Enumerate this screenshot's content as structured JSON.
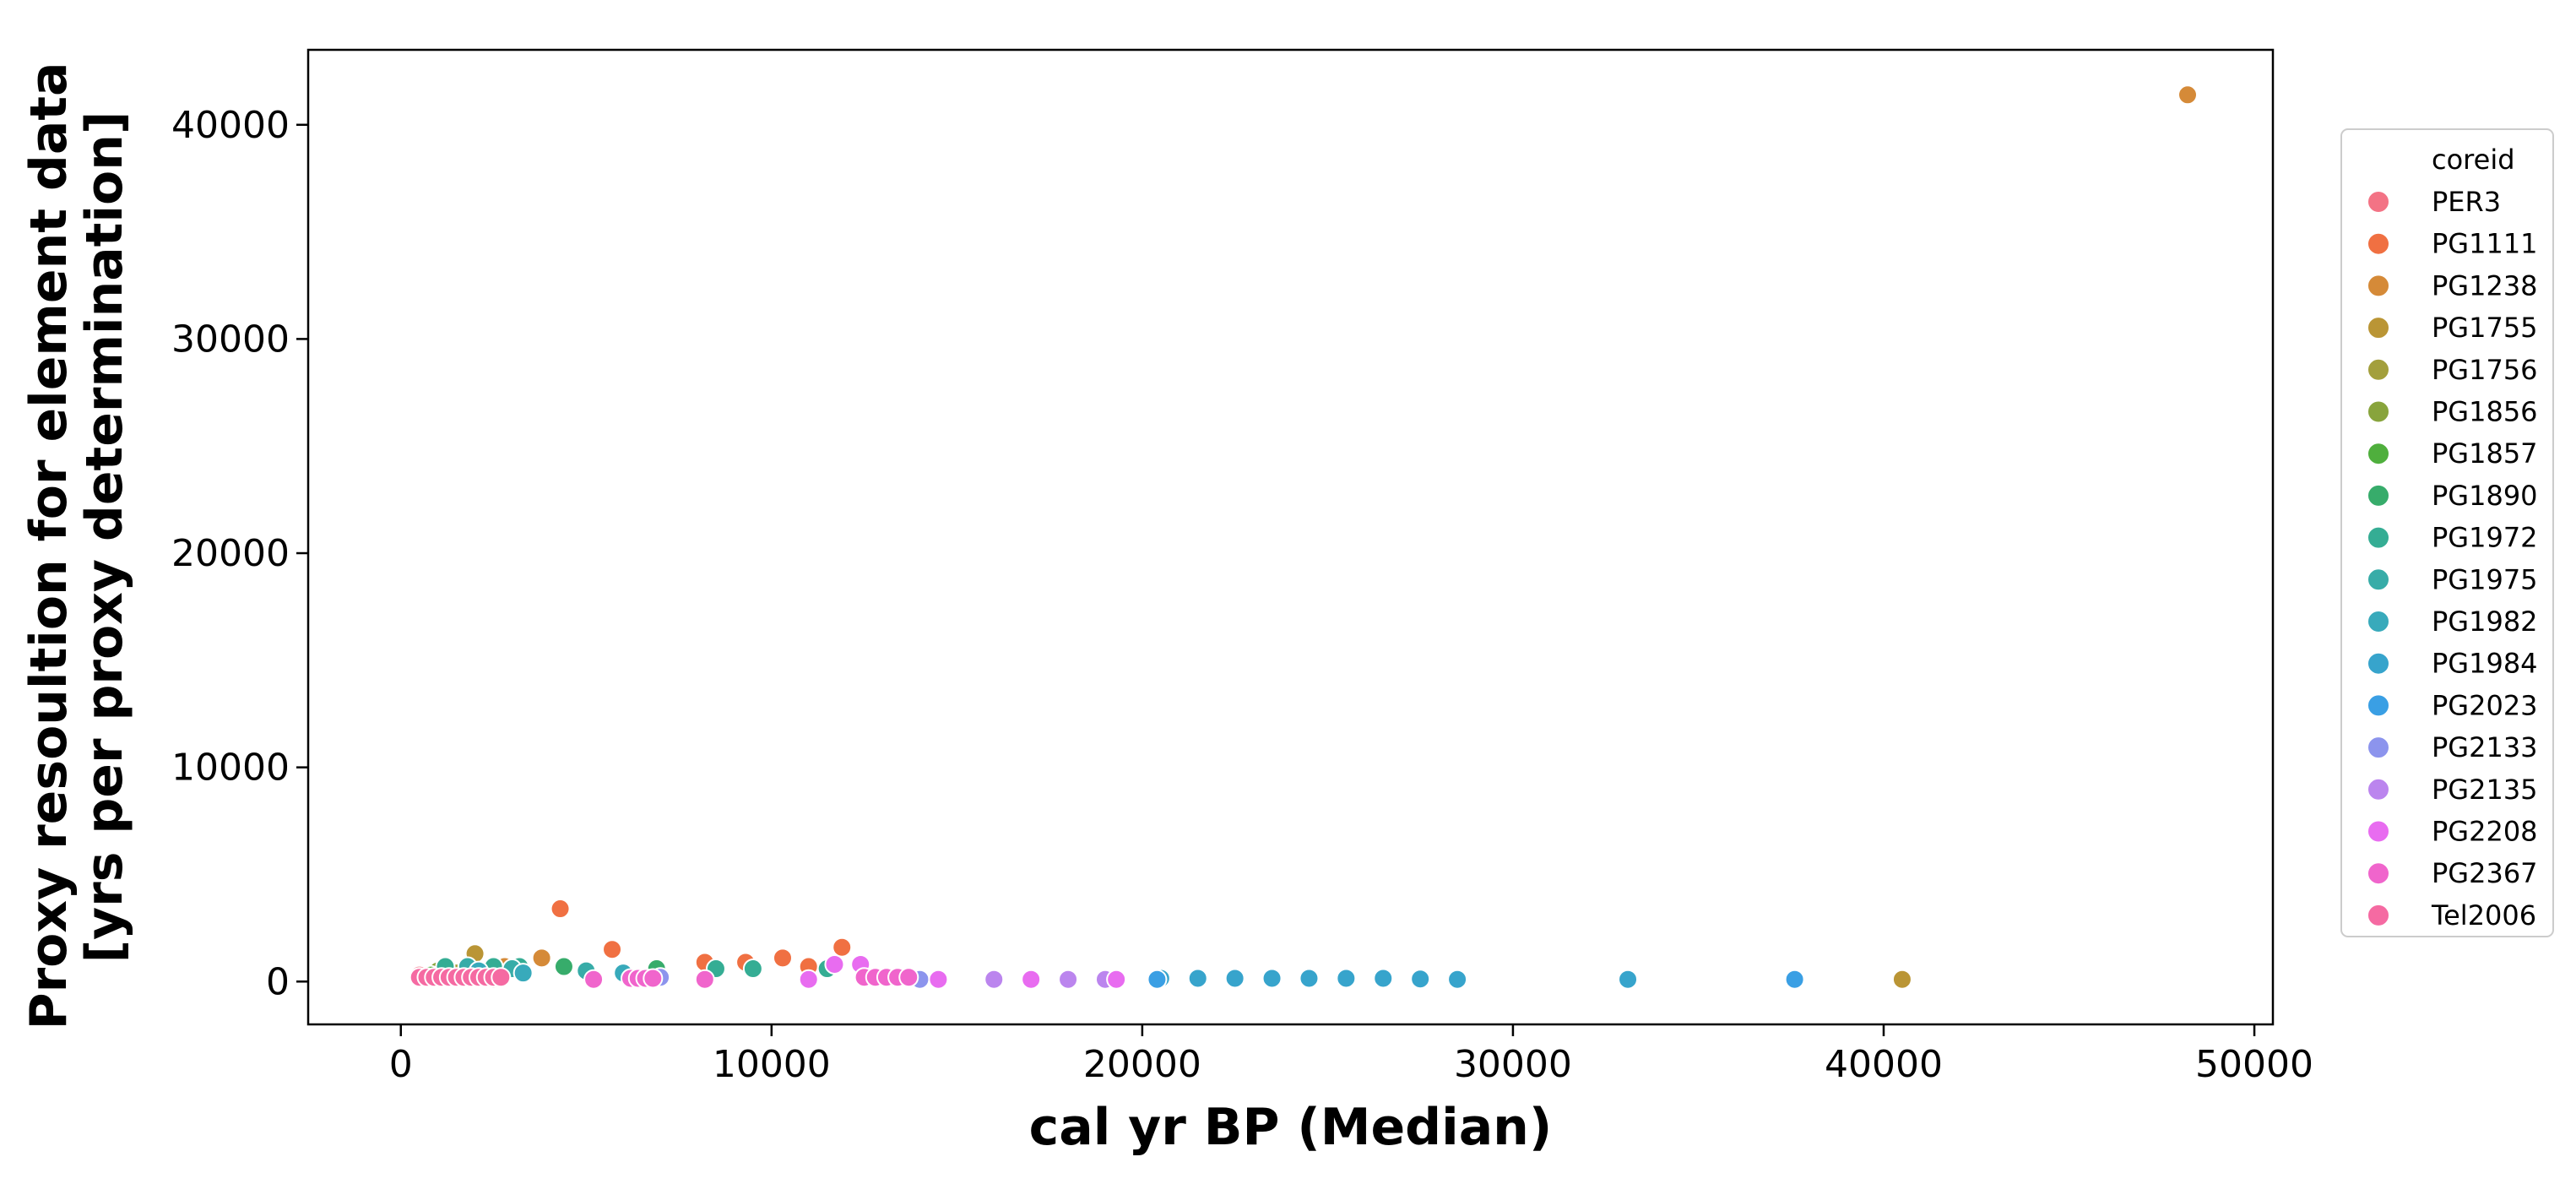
{
  "chart_data": {
    "type": "scatter",
    "xlabel": "cal yr BP (Median)",
    "ylabel_lines": [
      "Proxy resoultion for element data",
      "[yrs per proxy determination]"
    ],
    "xlim": [
      -2500,
      50500
    ],
    "ylim": [
      -2000,
      43500
    ],
    "x_ticks": [
      0,
      10000,
      20000,
      30000,
      40000,
      50000
    ],
    "y_ticks": [
      0,
      10000,
      20000,
      30000,
      40000
    ],
    "grid": false,
    "legend": {
      "title": "coreid",
      "placement": "right-outside"
    },
    "series": [
      {
        "name": "PER3",
        "color": "#f37385",
        "points": [
          [
            500,
            300
          ],
          [
            800,
            180
          ],
          [
            1100,
            250
          ],
          [
            1500,
            200
          ],
          [
            2000,
            150
          ],
          [
            2500,
            120
          ]
        ]
      },
      {
        "name": "PG1111",
        "color": "#f07042",
        "points": [
          [
            4300,
            3400
          ],
          [
            5700,
            1500
          ],
          [
            8200,
            900
          ],
          [
            9300,
            900
          ],
          [
            10300,
            1100
          ],
          [
            11000,
            700
          ],
          [
            11900,
            1600
          ]
        ]
      },
      {
        "name": "PG1238",
        "color": "#d58a38",
        "points": [
          [
            48200,
            41400
          ],
          [
            3800,
            1100
          ],
          [
            2800,
            700
          ]
        ]
      },
      {
        "name": "PG1755",
        "color": "#ba9535",
        "points": [
          [
            40500,
            100
          ],
          [
            2000,
            1300
          ]
        ]
      },
      {
        "name": "PG1756",
        "color": "#a39f3c",
        "points": [
          [
            1500,
            400
          ],
          [
            2500,
            300
          ]
        ]
      },
      {
        "name": "PG1856",
        "color": "#88a43c",
        "points": [
          [
            1000,
            500
          ],
          [
            2000,
            400
          ]
        ]
      },
      {
        "name": "PG1857",
        "color": "#4faf3d",
        "points": [
          [
            800,
            300
          ],
          [
            1800,
            200
          ]
        ]
      },
      {
        "name": "PG1890",
        "color": "#37ac6b",
        "points": [
          [
            4400,
            700
          ],
          [
            6900,
            600
          ],
          [
            2600,
            300
          ]
        ]
      },
      {
        "name": "PG1972",
        "color": "#35ad94",
        "points": [
          [
            1200,
            700
          ],
          [
            2500,
            700
          ],
          [
            3200,
            700
          ],
          [
            8500,
            600
          ],
          [
            9500,
            600
          ],
          [
            11500,
            600
          ]
        ]
      },
      {
        "name": "PG1975",
        "color": "#37aca8",
        "points": [
          [
            1800,
            700
          ],
          [
            3000,
            600
          ],
          [
            5000,
            500
          ]
        ]
      },
      {
        "name": "PG1982",
        "color": "#38aabb",
        "points": [
          [
            2100,
            500
          ],
          [
            3300,
            400
          ],
          [
            6000,
            400
          ]
        ]
      },
      {
        "name": "PG1984",
        "color": "#37a4cc",
        "points": [
          [
            20500,
            150
          ],
          [
            21500,
            150
          ],
          [
            22500,
            150
          ],
          [
            23500,
            150
          ],
          [
            24500,
            150
          ],
          [
            25500,
            150
          ],
          [
            26500,
            150
          ],
          [
            27500,
            120
          ],
          [
            28500,
            100
          ],
          [
            33100,
            100
          ]
        ]
      },
      {
        "name": "PG2023",
        "color": "#3a9fe4",
        "points": [
          [
            37600,
            100
          ],
          [
            20400,
            100
          ]
        ]
      },
      {
        "name": "PG2133",
        "color": "#8c94ed",
        "points": [
          [
            7000,
            200
          ],
          [
            14000,
            100
          ]
        ]
      },
      {
        "name": "PG2135",
        "color": "#bb85ee",
        "points": [
          [
            16000,
            100
          ],
          [
            18000,
            100
          ],
          [
            19000,
            100
          ]
        ]
      },
      {
        "name": "PG2208",
        "color": "#e86cf0",
        "points": [
          [
            19300,
            100
          ],
          [
            11000,
            100
          ],
          [
            11700,
            800
          ],
          [
            12400,
            800
          ],
          [
            14500,
            100
          ],
          [
            17000,
            100
          ]
        ]
      },
      {
        "name": "PG2367",
        "color": "#f065cc",
        "points": [
          [
            12500,
            200
          ],
          [
            12800,
            200
          ],
          [
            13100,
            200
          ],
          [
            13400,
            200
          ],
          [
            13700,
            200
          ],
          [
            6200,
            150
          ],
          [
            6400,
            150
          ],
          [
            6600,
            150
          ],
          [
            6800,
            150
          ],
          [
            8200,
            100
          ],
          [
            5200,
            100
          ]
        ]
      },
      {
        "name": "Tel2006",
        "color": "#f56aa2",
        "points": [
          [
            500,
            200
          ],
          [
            700,
            200
          ],
          [
            900,
            200
          ],
          [
            1100,
            200
          ],
          [
            1300,
            200
          ],
          [
            1500,
            200
          ],
          [
            1700,
            200
          ],
          [
            1900,
            200
          ],
          [
            2100,
            200
          ],
          [
            2300,
            200
          ],
          [
            2500,
            200
          ],
          [
            2700,
            200
          ]
        ]
      }
    ]
  }
}
